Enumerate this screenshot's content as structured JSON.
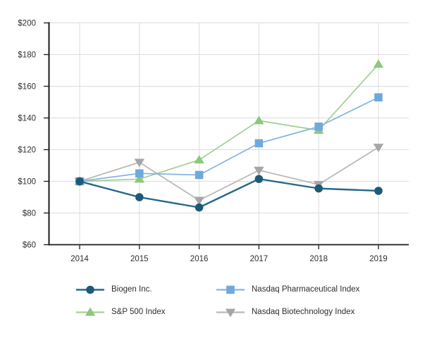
{
  "chart_data": {
    "type": "line",
    "title": "",
    "xlabel": "",
    "ylabel": "",
    "x_categories": [
      "2014",
      "2015",
      "2016",
      "2017",
      "2018",
      "2019"
    ],
    "y_ticks": [
      {
        "label": "$200",
        "value": 200
      },
      {
        "label": "$180",
        "value": 180
      },
      {
        "label": "$160",
        "value": 160
      },
      {
        "label": "$140",
        "value": 140
      },
      {
        "label": "$120",
        "value": 120
      },
      {
        "label": "$100",
        "value": 100
      },
      {
        "label": "$80",
        "value": 80
      },
      {
        "label": "$60",
        "value": 60
      }
    ],
    "ylim": [
      60,
      200
    ],
    "grid": true,
    "legend_position": "bottom",
    "series": [
      {
        "name": "Biogen Inc.",
        "marker": "circle",
        "line_color": "#26698a",
        "marker_color": "#1d5a77",
        "values": [
          100,
          90,
          83.5,
          101.5,
          95.5,
          94
        ]
      },
      {
        "name": "Nasdaq Pharmaceutical Index",
        "marker": "square",
        "line_color": "#85b5e2",
        "marker_color": "#6fa9dc",
        "values": [
          100,
          105,
          104,
          124,
          134.5,
          153
        ]
      },
      {
        "name": "S&P 500 Index",
        "marker": "triangle-up",
        "line_color": "#a5d197",
        "marker_color": "#8cc87e",
        "values": [
          100,
          101.4,
          113.5,
          138.3,
          132.2,
          173.9
        ]
      },
      {
        "name": "Nasdaq Biotechnology Index",
        "marker": "triangle-down",
        "line_color": "#b9b9b9",
        "marker_color": "#a6a6a6",
        "values": [
          100,
          112,
          88,
          107,
          98,
          121.5
        ]
      }
    ]
  },
  "colors": {
    "axis": "#1a1a1a",
    "grid": "#dcdcdc",
    "text": "#2e2e2e",
    "background": "#ffffff"
  }
}
